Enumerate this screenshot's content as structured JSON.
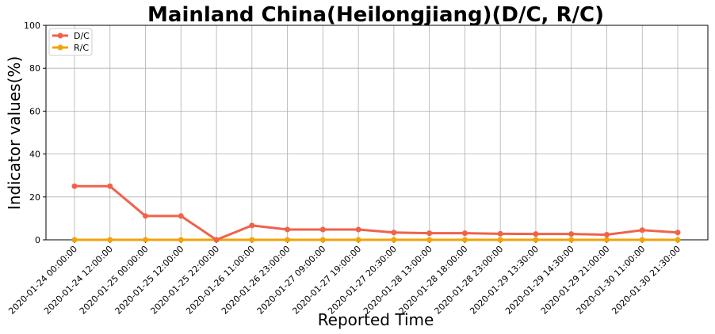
{
  "chart_data": {
    "type": "line",
    "title": "Mainland China(Heilongjiang)(D/C, R/C)",
    "xlabel": "Reported Time",
    "ylabel": "Indicator values(%)",
    "ylim": [
      0,
      100
    ],
    "yticks": [
      0,
      20,
      40,
      60,
      80,
      100
    ],
    "grid": true,
    "legend_position": "top-left",
    "categories": [
      "2020-01-24 00:00:00",
      "2020-01-24 12:00:00",
      "2020-01-25 00:00:00",
      "2020-01-25 12:00:00",
      "2020-01-25 22:00:00",
      "2020-01-26 11:00:00",
      "2020-01-26 23:00:00",
      "2020-01-27 09:00:00",
      "2020-01-27 19:00:00",
      "2020-01-27 20:30:00",
      "2020-01-28 13:00:00",
      "2020-01-28 18:00:00",
      "2020-01-28 23:00:00",
      "2020-01-29 13:30:00",
      "2020-01-29 14:30:00",
      "2020-01-29 21:00:00",
      "2020-01-30 11:00:00",
      "2020-01-30 21:30:00"
    ],
    "series": [
      {
        "name": "D/C",
        "color": "#f0624a",
        "values": [
          25,
          25,
          11.1,
          11.1,
          0,
          6.7,
          4.8,
          4.8,
          4.8,
          3.4,
          3.1,
          3.1,
          2.8,
          2.7,
          2.7,
          2.4,
          4.5,
          3.4
        ]
      },
      {
        "name": "R/C",
        "color": "#f0a30a",
        "values": [
          0,
          0,
          0,
          0,
          0,
          0,
          0,
          0,
          0,
          0,
          0,
          0,
          0,
          0,
          0,
          0,
          0,
          0
        ]
      }
    ]
  }
}
